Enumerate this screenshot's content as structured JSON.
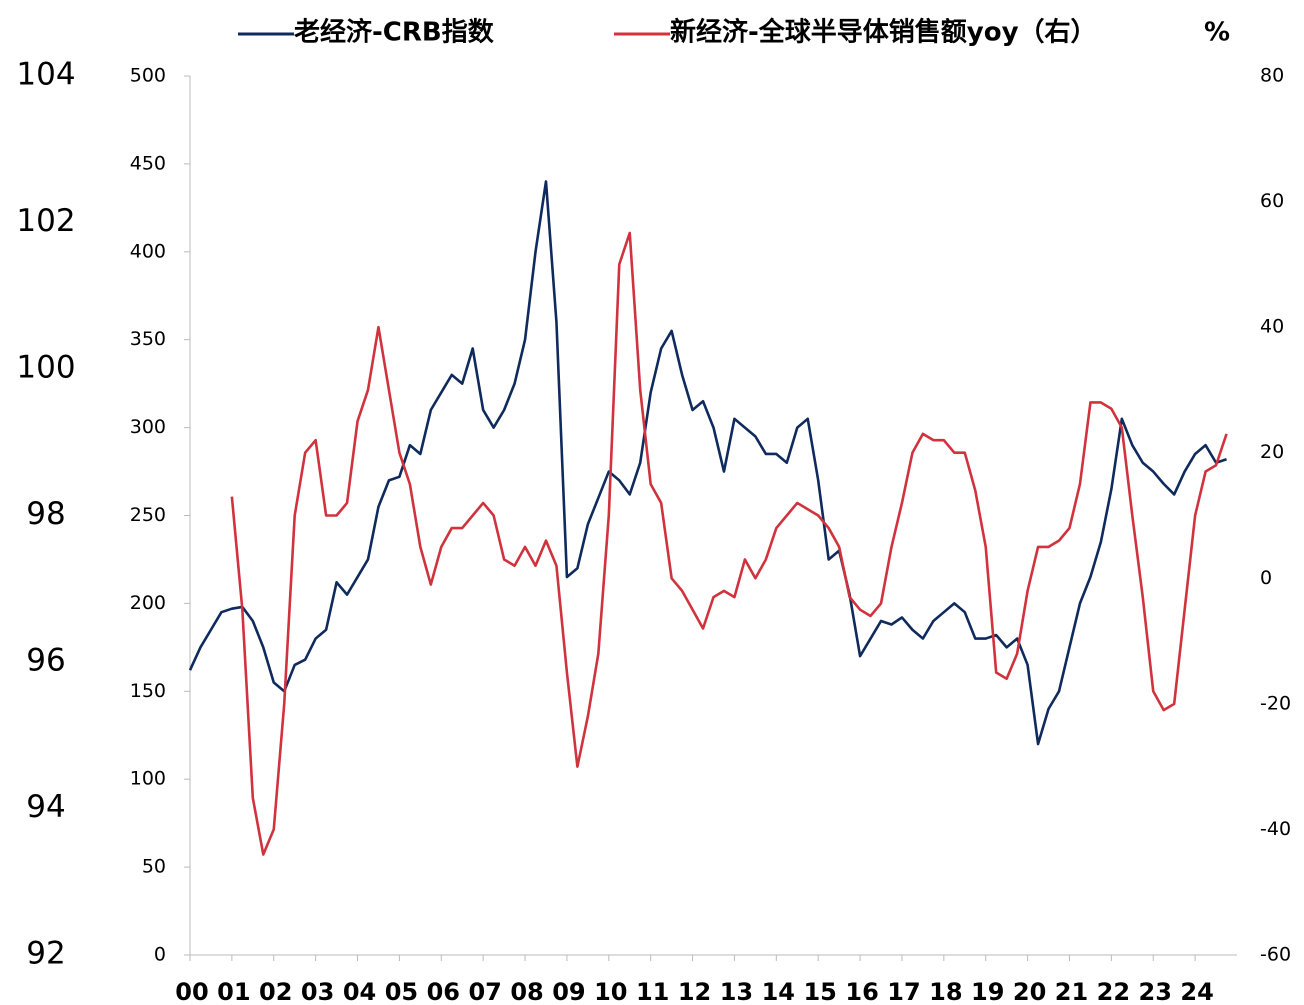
{
  "chart_data": {
    "type": "line",
    "legend": "top",
    "y2label": "%",
    "x": [
      0,
      0.25,
      0.5,
      0.75,
      1,
      1.25,
      1.5,
      1.75,
      2,
      2.25,
      2.5,
      2.75,
      3,
      3.25,
      3.5,
      3.75,
      4,
      4.25,
      4.5,
      4.75,
      5,
      5.25,
      5.5,
      5.75,
      6,
      6.25,
      6.5,
      6.75,
      7,
      7.25,
      7.5,
      7.75,
      8,
      8.25,
      8.5,
      8.75,
      9,
      9.25,
      9.5,
      9.75,
      10,
      10.25,
      10.5,
      10.75,
      11,
      11.25,
      11.5,
      11.75,
      12,
      12.25,
      12.5,
      12.75,
      13,
      13.25,
      13.5,
      13.75,
      14,
      14.25,
      14.5,
      14.75,
      15,
      15.25,
      15.5,
      15.75,
      16,
      16.25,
      16.5,
      16.75,
      17,
      17.25,
      17.5,
      17.75,
      18,
      18.25,
      18.5,
      18.75,
      19,
      19.25,
      19.5,
      19.75,
      20,
      20.25,
      20.5,
      20.75,
      21,
      21.25,
      21.5,
      21.75,
      22,
      22.25,
      22.5,
      22.75,
      23,
      23.25,
      23.5,
      23.75,
      24,
      24.25,
      24.5,
      24.75
    ],
    "series": [
      {
        "name": "老经济-CRB指数",
        "color": "#0f2a5c",
        "axis": "y",
        "values": [
          162,
          175,
          185,
          195,
          197,
          198,
          190,
          175,
          155,
          150,
          165,
          168,
          180,
          185,
          212,
          205,
          215,
          225,
          255,
          270,
          272,
          290,
          285,
          310,
          320,
          330,
          325,
          345,
          310,
          300,
          310,
          325,
          350,
          400,
          440,
          360,
          215,
          220,
          245,
          260,
          275,
          270,
          262,
          280,
          320,
          345,
          355,
          330,
          310,
          315,
          300,
          275,
          305,
          300,
          295,
          285,
          285,
          280,
          300,
          305,
          270,
          225,
          230,
          205,
          170,
          180,
          190,
          188,
          192,
          185,
          180,
          190,
          195,
          200,
          195,
          180,
          180,
          182,
          175,
          180,
          165,
          120,
          140,
          150,
          175,
          200,
          215,
          235,
          265,
          305,
          290,
          280,
          275,
          268,
          262,
          275,
          285,
          290,
          280,
          282
        ]
      },
      {
        "name": "新经济-全球半导体销售额yoy（右）",
        "color": "#d0333d",
        "axis": "y2",
        "values": [
          null,
          null,
          null,
          null,
          13,
          -5,
          -35,
          -44,
          -40,
          -20,
          10,
          20,
          22,
          10,
          10,
          12,
          25,
          30,
          40,
          30,
          20,
          15,
          5,
          -1,
          5,
          8,
          8,
          10,
          12,
          10,
          3,
          2,
          5,
          2,
          6,
          2,
          -15,
          -30,
          -22,
          -12,
          10,
          50,
          55,
          30,
          15,
          12,
          0,
          -2,
          -5,
          -8,
          -3,
          -2,
          -3,
          3,
          0,
          3,
          8,
          10,
          12,
          11,
          10,
          8,
          5,
          -3,
          -5,
          -6,
          -4,
          5,
          12,
          20,
          23,
          22,
          22,
          20,
          20,
          14,
          5,
          -15,
          -16,
          -12,
          -2,
          5,
          5,
          6,
          8,
          15,
          28,
          28,
          27,
          24,
          10,
          -3,
          -18,
          -21,
          -20,
          -5,
          10,
          17,
          18,
          23
        ]
      }
    ],
    "xlim": [
      0,
      25
    ],
    "xticks": [
      {
        "value": 0,
        "label": "00"
      },
      {
        "value": 1,
        "label": "01"
      },
      {
        "value": 2,
        "label": "02"
      },
      {
        "value": 3,
        "label": "03"
      },
      {
        "value": 4,
        "label": "04"
      },
      {
        "value": 5,
        "label": "05"
      },
      {
        "value": 6,
        "label": "06"
      },
      {
        "value": 7,
        "label": "07"
      },
      {
        "value": 8,
        "label": "08"
      },
      {
        "value": 9,
        "label": "09"
      },
      {
        "value": 10,
        "label": "10"
      },
      {
        "value": 11,
        "label": "11"
      },
      {
        "value": 12,
        "label": "12"
      },
      {
        "value": 13,
        "label": "13"
      },
      {
        "value": 14,
        "label": "14"
      },
      {
        "value": 15,
        "label": "15"
      },
      {
        "value": 16,
        "label": "16"
      },
      {
        "value": 17,
        "label": "17"
      },
      {
        "value": 18,
        "label": "18"
      },
      {
        "value": 19,
        "label": "19"
      },
      {
        "value": 20,
        "label": "20"
      },
      {
        "value": 21,
        "label": "21"
      },
      {
        "value": 22,
        "label": "22"
      },
      {
        "value": 23,
        "label": "23"
      },
      {
        "value": 24,
        "label": "24"
      }
    ],
    "ylim": [
      0,
      500
    ],
    "yticks": [
      0,
      50,
      100,
      150,
      200,
      250,
      300,
      350,
      400,
      450,
      500
    ],
    "y2lim": [
      -60,
      80
    ],
    "y2ticks": [
      -60,
      -40,
      -20,
      0,
      20,
      40,
      60,
      80
    ],
    "outer_ylim": [
      92,
      104
    ],
    "outer_yticks": [
      92,
      94,
      96,
      98,
      100,
      102,
      104
    ]
  }
}
